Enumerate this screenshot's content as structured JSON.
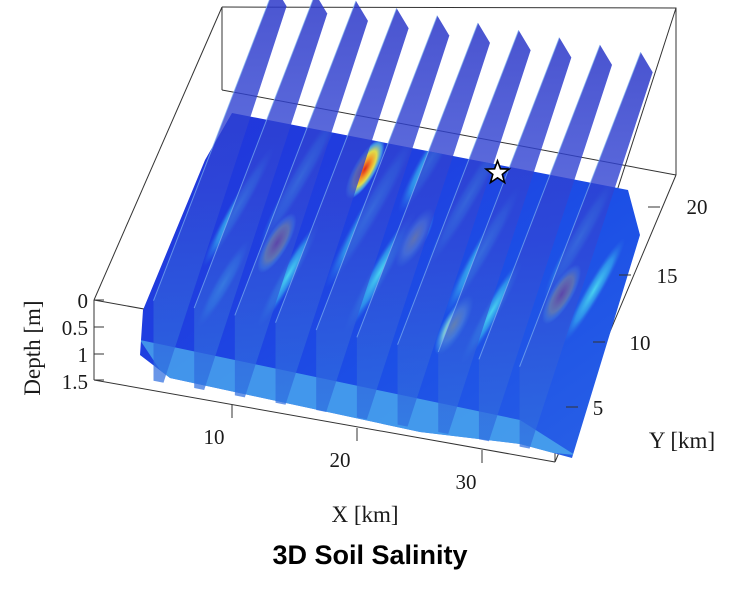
{
  "caption": "3D Soil Salinity",
  "chart_data": {
    "type": "heatmap",
    "title": "3D Soil Salinity",
    "xlabel": "X [km]",
    "ylabel": "Y [km]",
    "zlabel": "Depth [m]",
    "x_ticks": [
      "10",
      "20",
      "30"
    ],
    "y_ticks": [
      "5",
      "10",
      "15",
      "20"
    ],
    "z_ticks": [
      "0",
      "0.5",
      "1",
      "1.5"
    ],
    "xlim": [
      2,
      36
    ],
    "ylim": [
      0,
      23
    ],
    "zlim": [
      0,
      1.5
    ],
    "colormap": "jet",
    "colors": {
      "low": "#1f2fd6",
      "mid": "#2fb8ea",
      "high_mid": "#f6ee3a",
      "high": "#e0281c"
    },
    "vertical_slices_x_km": [
      6,
      9,
      12,
      15,
      18,
      21,
      24,
      27,
      30,
      33
    ],
    "marker": {
      "shape": "star",
      "x_km": 24,
      "y_km": 20,
      "depth_m": 0
    },
    "hotspots": [
      {
        "x_km": 15,
        "y_km": 18,
        "level": "high"
      },
      {
        "x_km": 12,
        "y_km": 9,
        "level": "high"
      },
      {
        "x_km": 21,
        "y_km": 12,
        "level": "high_mid"
      },
      {
        "x_km": 33,
        "y_km": 9,
        "level": "high"
      },
      {
        "x_km": 27,
        "y_km": 4,
        "level": "high_mid"
      }
    ]
  }
}
